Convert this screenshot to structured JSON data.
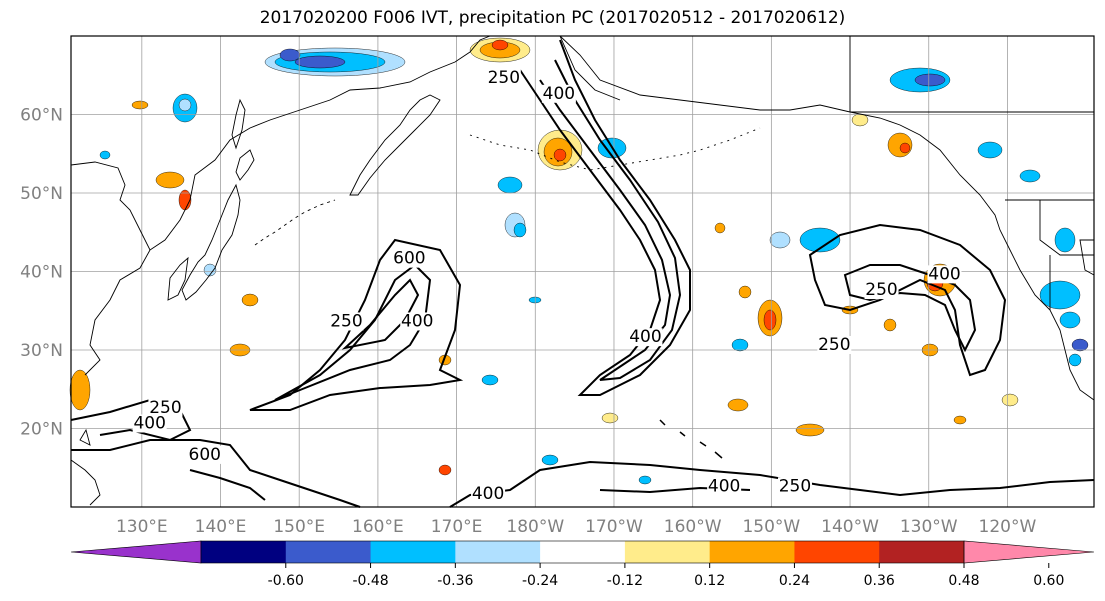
{
  "title": "2017020200 F006 IVT, precipitation PC (2017020512 - 2017020612)",
  "map": {
    "lon_labels": [
      "130°E",
      "140°E",
      "150°E",
      "160°E",
      "170°E",
      "180°W",
      "170°W",
      "160°W",
      "150°W",
      "140°W",
      "130°W",
      "120°W"
    ],
    "lat_labels": [
      "60°N",
      "50°N",
      "40°N",
      "30°N",
      "20°N"
    ],
    "lon_range": [
      121,
      251
    ],
    "lat_range": [
      10,
      70
    ],
    "contour_labels": [
      {
        "text": "250",
        "lon": 156,
        "lat": 33
      },
      {
        "text": "600",
        "lon": 164,
        "lat": 41
      },
      {
        "text": "400",
        "lon": 165,
        "lat": 33
      },
      {
        "text": "250",
        "lon": 133,
        "lat": 22
      },
      {
        "text": "400",
        "lon": 131,
        "lat": 20
      },
      {
        "text": "600",
        "lon": 138,
        "lat": 16
      },
      {
        "text": "250",
        "lon": 176,
        "lat": 64
      },
      {
        "text": "400",
        "lon": 183,
        "lat": 62
      },
      {
        "text": "400",
        "lon": 194,
        "lat": 31
      },
      {
        "text": "250",
        "lon": 224,
        "lat": 37
      },
      {
        "text": "250",
        "lon": 218,
        "lat": 30
      },
      {
        "text": "400",
        "lon": 232,
        "lat": 39
      },
      {
        "text": "400",
        "lon": 174,
        "lat": 11
      },
      {
        "text": "400",
        "lon": 204,
        "lat": 12
      },
      {
        "text": "250",
        "lon": 213,
        "lat": 12
      }
    ]
  },
  "colorbar": {
    "colors": [
      "#9932cc",
      "#000080",
      "#3b5bcc",
      "#00bfff",
      "#b0e0ff",
      "#ffffff",
      "#ffec8b",
      "#ffa500",
      "#ff4500",
      "#b22222",
      "#ff88aa"
    ],
    "tick_labels": [
      "-0.60",
      "-0.48",
      "-0.36",
      "-0.24",
      "-0.12",
      "0.12",
      "0.24",
      "0.36",
      "0.48",
      "0.60"
    ]
  },
  "styling": {
    "grid_color": "#a0a0a0",
    "coast_color": "#000000",
    "contour_color": "#000000"
  }
}
